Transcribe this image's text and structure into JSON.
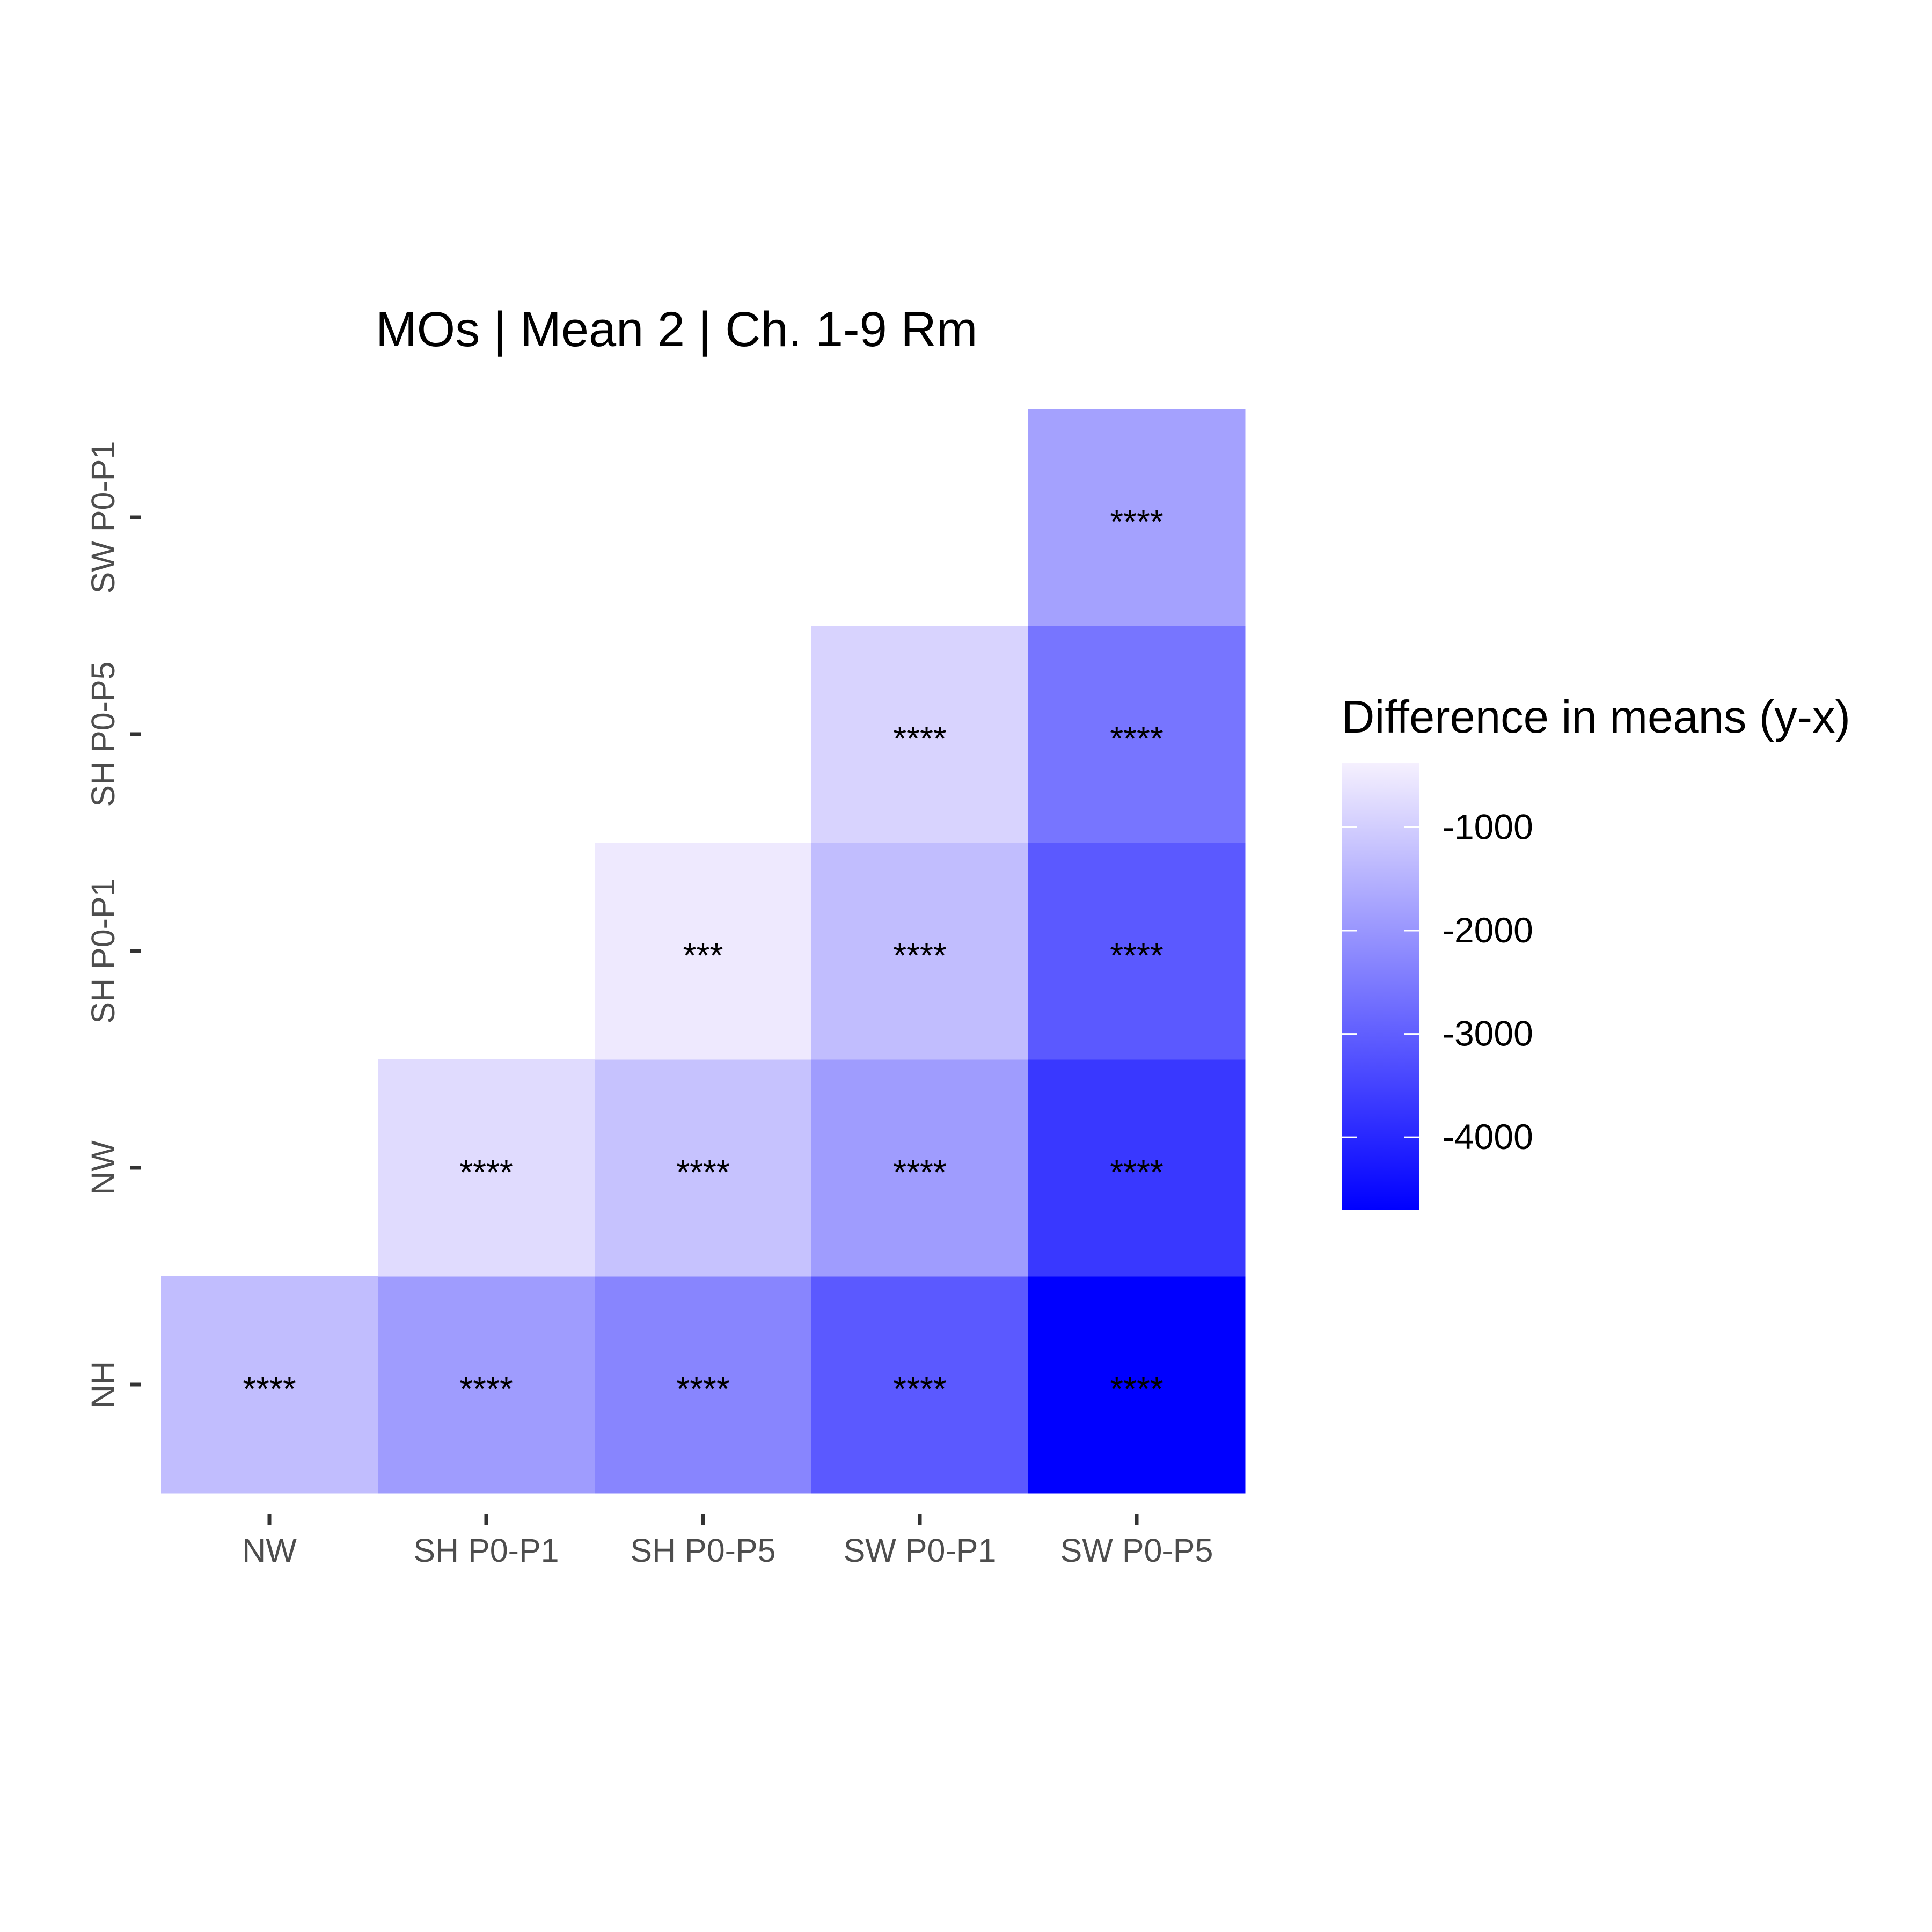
{
  "chart_data": {
    "type": "heatmap",
    "title": "MOs | Mean 2 | Ch. 1-9 Rm",
    "xlabel": "",
    "ylabel": "",
    "x_categories": [
      "NW",
      "SH P0-P1",
      "SH P0-P5",
      "SW P0-P1",
      "SW P0-P5"
    ],
    "y_categories": [
      "NH",
      "NW",
      "SH P0-P1",
      "SH P0-P5",
      "SW P0-P1"
    ],
    "cells": [
      {
        "x": "NW",
        "y": "NH",
        "value": -1300,
        "label": "****"
      },
      {
        "x": "SH P0-P1",
        "y": "NH",
        "value": -1900,
        "label": "****"
      },
      {
        "x": "SH P0-P5",
        "y": "NH",
        "value": -2300,
        "label": "****"
      },
      {
        "x": "SW P0-P1",
        "y": "NH",
        "value": -3100,
        "label": "****"
      },
      {
        "x": "SW P0-P5",
        "y": "NH",
        "value": -4700,
        "label": "****"
      },
      {
        "x": "SH P0-P1",
        "y": "NW",
        "value": -750,
        "label": "****"
      },
      {
        "x": "SH P0-P5",
        "y": "NW",
        "value": -1200,
        "label": "****"
      },
      {
        "x": "SW P0-P1",
        "y": "NW",
        "value": -1900,
        "label": "****"
      },
      {
        "x": "SW P0-P5",
        "y": "NW",
        "value": -3700,
        "label": "****"
      },
      {
        "x": "SH P0-P5",
        "y": "SH P0-P1",
        "value": -500,
        "label": "***"
      },
      {
        "x": "SW P0-P1",
        "y": "SH P0-P1",
        "value": -1300,
        "label": "****"
      },
      {
        "x": "SW P0-P5",
        "y": "SH P0-P1",
        "value": -3100,
        "label": "****"
      },
      {
        "x": "SW P0-P1",
        "y": "SH P0-P5",
        "value": -900,
        "label": "****"
      },
      {
        "x": "SW P0-P5",
        "y": "SH P0-P5",
        "value": -2600,
        "label": "****"
      },
      {
        "x": "SW P0-P5",
        "y": "SW P0-P1",
        "value": -1800,
        "label": "****"
      }
    ],
    "colorbar": {
      "title": "Difference in means (y-x)",
      "range": [
        -4700,
        -380
      ],
      "ticks": [
        -1000,
        -2000,
        -3000,
        -4000
      ],
      "tick_labels": [
        "-1000",
        "-2000",
        "-3000",
        "-4000"
      ],
      "color_low": "#0000FF",
      "color_high": "#F5F0FE"
    },
    "grid": false,
    "legend_position": "right"
  }
}
